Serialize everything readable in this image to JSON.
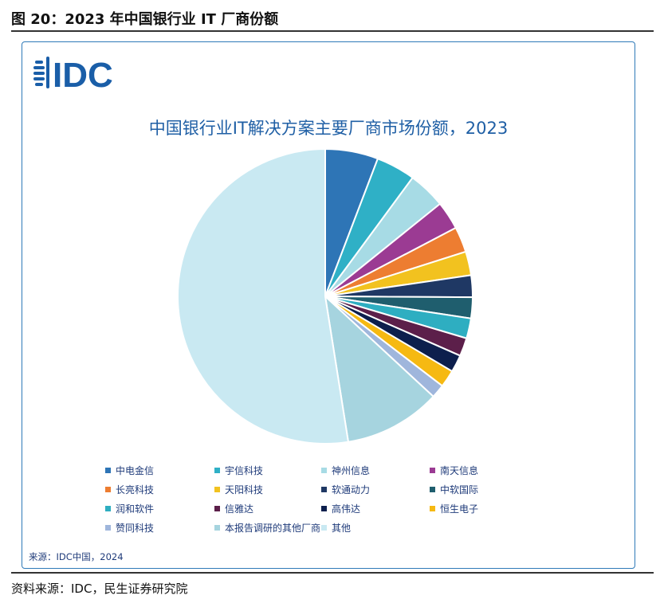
{
  "figure": {
    "title": "图 20：2023 年中国银行业 IT 厂商份额",
    "source": "资料来源：IDC，民生证券研究院"
  },
  "panel": {
    "logo_text": "IDC",
    "source": "来源：IDC中国，2024"
  },
  "chart_data": {
    "type": "pie",
    "title": "中国银行业IT解决方案主要厂商市场份额，2023",
    "start_angle": "12 o'clock",
    "direction": "clockwise",
    "legend_position": "bottom",
    "slices": [
      {
        "label": "中电金信",
        "value": 5.8,
        "color": "#2e75b6"
      },
      {
        "label": "宇信科技",
        "value": 4.3,
        "color": "#2fb0c6"
      },
      {
        "label": "神州信息",
        "value": 4.1,
        "color": "#a7dbe5"
      },
      {
        "label": "南天信息",
        "value": 3.1,
        "color": "#9b3b93"
      },
      {
        "label": "长亮科技",
        "value": 2.8,
        "color": "#ed7d31"
      },
      {
        "label": "天阳科技",
        "value": 2.6,
        "color": "#f2c21f"
      },
      {
        "label": "软通动力",
        "value": 2.4,
        "color": "#1f3864"
      },
      {
        "label": "中软国际",
        "value": 2.3,
        "color": "#1f5e6e"
      },
      {
        "label": "润和软件",
        "value": 2.2,
        "color": "#2eaec1"
      },
      {
        "label": "信雅达",
        "value": 2.0,
        "color": "#5c1f4a"
      },
      {
        "label": "高伟达",
        "value": 1.9,
        "color": "#0d1f4d"
      },
      {
        "label": "恒生电子",
        "value": 1.9,
        "color": "#f6b912"
      },
      {
        "label": "赞同科技",
        "value": 1.5,
        "color": "#9fb6dc"
      },
      {
        "label": "本报告调研的其他厂商",
        "value": 10.6,
        "color": "#a6d4df"
      },
      {
        "label": "其他",
        "value": 52.5,
        "color": "#c9e9f2"
      }
    ]
  }
}
